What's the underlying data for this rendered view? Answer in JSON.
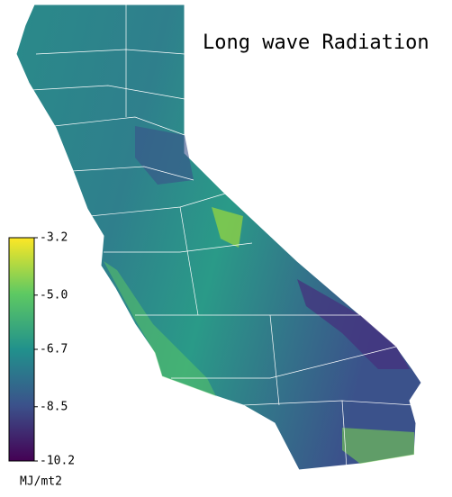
{
  "title": "Long wave Radiation",
  "colorbar": {
    "lim": [
      -10.2,
      -3.2
    ],
    "ticks": [
      -3.2,
      {
        "value": -5,
        "label": "-5.0"
      },
      -6.7,
      -8.5,
      -10.2
    ],
    "unit": "MJ/mt2"
  }
}
